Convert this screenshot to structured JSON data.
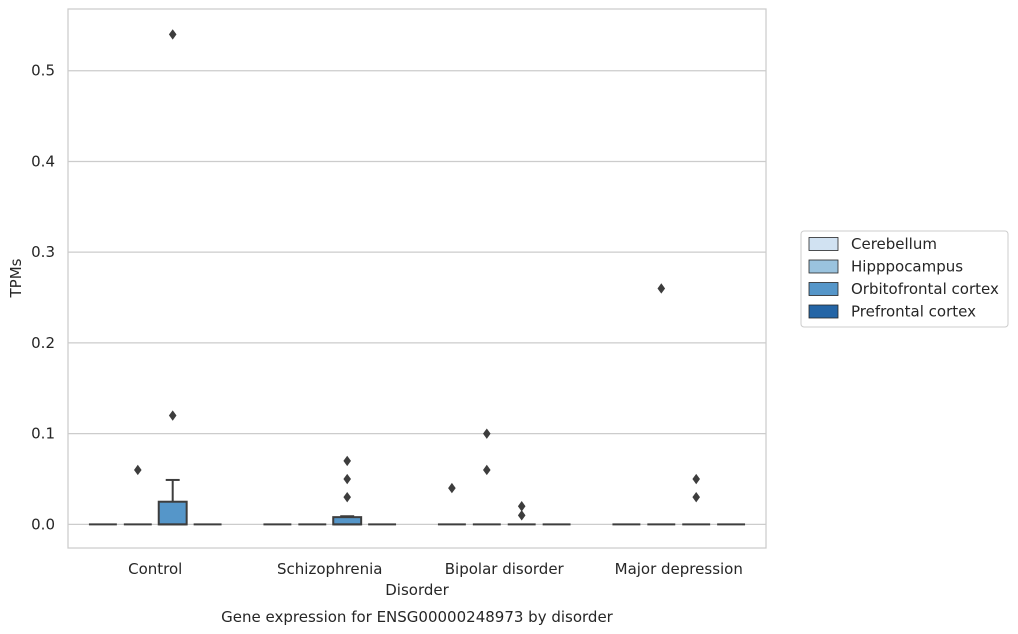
{
  "chart_data": {
    "type": "box",
    "caption": "Gene expression for ENSG00000248973 by disorder",
    "xlabel": "Disorder",
    "ylabel": "TPMs",
    "ylim": [
      -0.026,
      0.568
    ],
    "yticks": [
      0.0,
      0.1,
      0.2,
      0.3,
      0.4,
      0.5
    ],
    "ytick_labels": [
      "0.0",
      "0.1",
      "0.2",
      "0.3",
      "0.4",
      "0.5"
    ],
    "grid": "horizontal",
    "legend_position": "right",
    "categories": [
      "Control",
      "Schizophrenia",
      "Bipolar disorder",
      "Major depression"
    ],
    "series": [
      {
        "name": "Cerebellum",
        "color": "#d1e2f2",
        "boxes": [
          {
            "q1": 0,
            "median": 0,
            "q3": 0,
            "whisker_low": 0,
            "whisker_high": 0,
            "outliers": []
          },
          {
            "q1": 0,
            "median": 0,
            "q3": 0,
            "whisker_low": 0,
            "whisker_high": 0,
            "outliers": []
          },
          {
            "q1": 0,
            "median": 0,
            "q3": 0,
            "whisker_low": 0,
            "whisker_high": 0,
            "outliers": [
              0.04
            ]
          },
          {
            "q1": 0,
            "median": 0,
            "q3": 0,
            "whisker_low": 0,
            "whisker_high": 0,
            "outliers": []
          }
        ]
      },
      {
        "name": "Hipppocampus",
        "color": "#9ac3de",
        "boxes": [
          {
            "q1": 0,
            "median": 0,
            "q3": 0,
            "whisker_low": 0,
            "whisker_high": 0,
            "outliers": [
              0.06
            ]
          },
          {
            "q1": 0,
            "median": 0,
            "q3": 0,
            "whisker_low": 0,
            "whisker_high": 0,
            "outliers": []
          },
          {
            "q1": 0,
            "median": 0,
            "q3": 0,
            "whisker_low": 0,
            "whisker_high": 0,
            "outliers": [
              0.1,
              0.06
            ]
          },
          {
            "q1": 0,
            "median": 0,
            "q3": 0,
            "whisker_low": 0,
            "whisker_high": 0,
            "outliers": [
              0.26
            ]
          }
        ]
      },
      {
        "name": "Orbitofrontal cortex",
        "color": "#5596c9",
        "boxes": [
          {
            "q1": 0,
            "median": 0,
            "q3": 0.025,
            "whisker_low": 0,
            "whisker_high": 0.049,
            "outliers": [
              0.54,
              0.12
            ]
          },
          {
            "q1": 0,
            "median": 0,
            "q3": 0.008,
            "whisker_low": 0,
            "whisker_high": 0.009,
            "outliers": [
              0.07,
              0.05,
              0.03
            ]
          },
          {
            "q1": 0,
            "median": 0,
            "q3": 0,
            "whisker_low": 0,
            "whisker_high": 0,
            "outliers": [
              0.02,
              0.01
            ]
          },
          {
            "q1": 0,
            "median": 0,
            "q3": 0,
            "whisker_low": 0,
            "whisker_high": 0,
            "outliers": [
              0.05,
              0.03
            ]
          }
        ]
      },
      {
        "name": "Prefrontal cortex",
        "color": "#2465a6",
        "boxes": [
          {
            "q1": 0,
            "median": 0,
            "q3": 0,
            "whisker_low": 0,
            "whisker_high": 0,
            "outliers": []
          },
          {
            "q1": 0,
            "median": 0,
            "q3": 0,
            "whisker_low": 0,
            "whisker_high": 0,
            "outliers": []
          },
          {
            "q1": 0,
            "median": 0,
            "q3": 0,
            "whisker_low": 0,
            "whisker_high": 0,
            "outliers": []
          },
          {
            "q1": 0,
            "median": 0,
            "q3": 0,
            "whisker_low": 0,
            "whisker_high": 0,
            "outliers": []
          }
        ]
      }
    ]
  }
}
